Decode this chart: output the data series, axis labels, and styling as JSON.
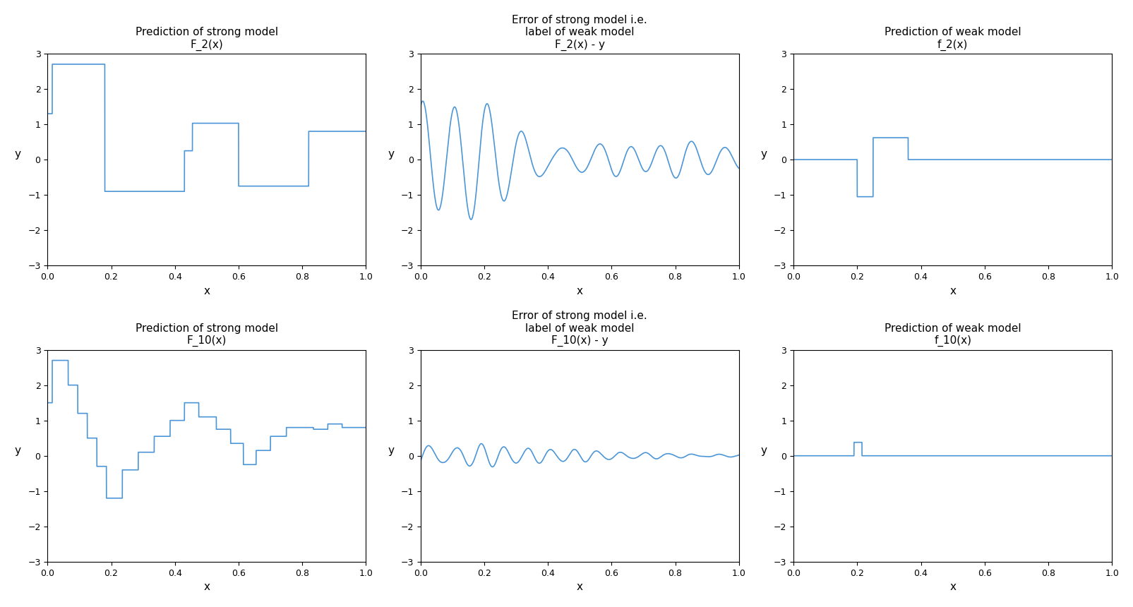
{
  "line_color": "#4C96D7",
  "ylim": [
    -3,
    3
  ],
  "xlim": [
    0.0,
    1.0
  ],
  "xlabel": "x",
  "ylabel": "y",
  "title_fontsize": 11,
  "axis_label_fontsize": 11,
  "titles_row0": [
    "Prediction of strong model\nF_2(x)",
    "Error of strong model i.e.\nlabel of weak model\nF_2(x) - y",
    "Prediction of weak model\nf_2(x)"
  ],
  "titles_row1": [
    "Prediction of strong model\nF_10(x)",
    "Error of strong model i.e.\nlabel of weak model\nF_10(x) - y",
    "Prediction of weak model\nf_10(x)"
  ],
  "yticks": [
    -3,
    -2,
    -1,
    0,
    1,
    2,
    3
  ],
  "xticks": [
    0.0,
    0.2,
    0.4,
    0.6,
    0.8,
    1.0
  ]
}
